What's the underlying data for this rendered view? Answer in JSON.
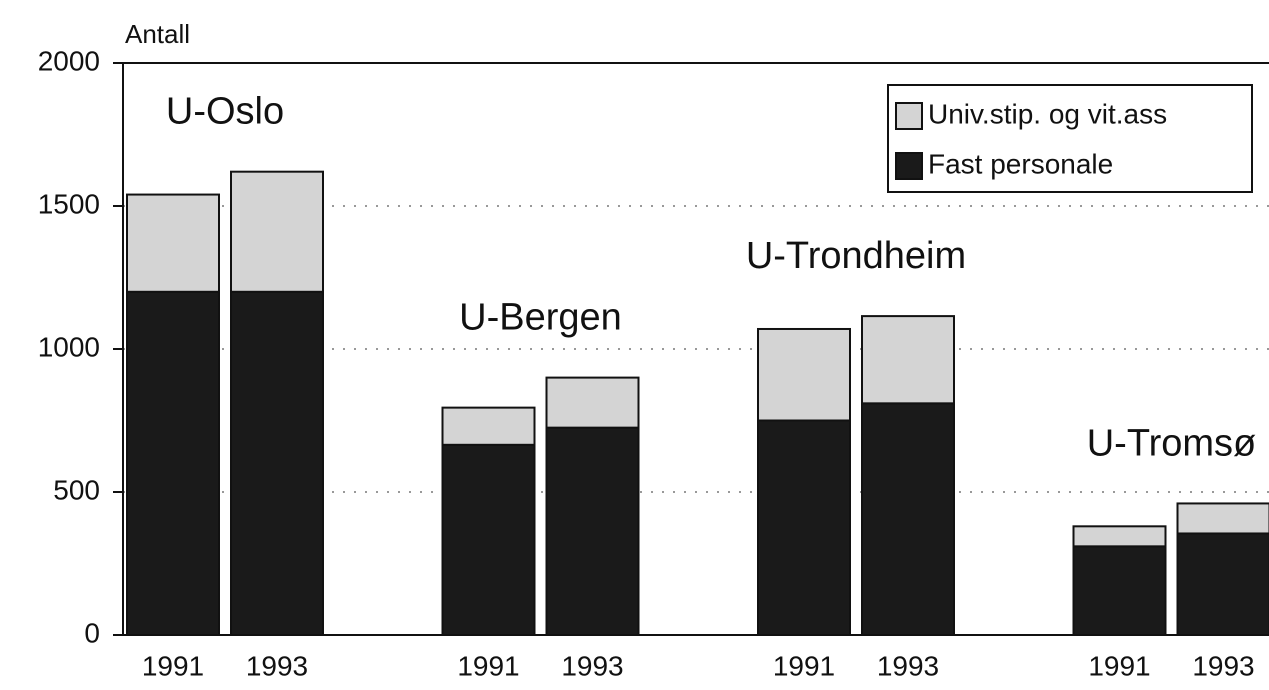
{
  "chart_data": {
    "type": "stacked_bar",
    "ylabel": "Antall",
    "groups": [
      "U-Oslo",
      "U-Bergen",
      "U-Trondheim",
      "U-Tromsø"
    ],
    "categories": [
      "1991",
      "1993",
      "1991",
      "1993",
      "1991",
      "1993",
      "1991",
      "1993"
    ],
    "series": [
      {
        "name": "Fast personale",
        "color": "#1a1a1a",
        "values": [
          1200,
          1200,
          665,
          725,
          750,
          810,
          310,
          355
        ]
      },
      {
        "name": "Univ.stip. og vit.ass",
        "color": "#d4d4d4",
        "values": [
          340,
          420,
          130,
          175,
          320,
          305,
          70,
          105
        ]
      }
    ],
    "ylim": [
      0,
      2000
    ],
    "yticks": [
      0,
      500,
      1000,
      1500,
      2000
    ],
    "grid": true,
    "legend": "top-right"
  }
}
